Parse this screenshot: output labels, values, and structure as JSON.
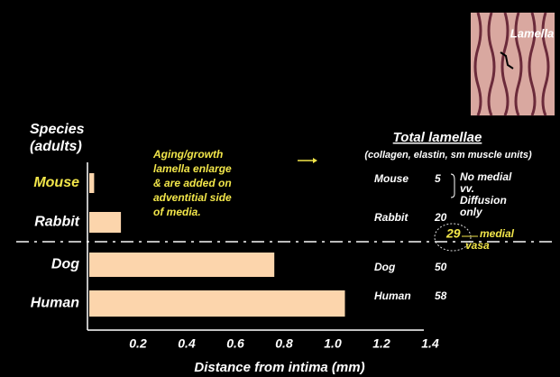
{
  "chart_data": {
    "type": "hbar",
    "ylabel": [
      "Species",
      "(adults)"
    ],
    "xlabel": "Distance from intima (mm)",
    "categories": [
      "Mouse",
      "Rabbit",
      "Dog",
      "Human"
    ],
    "values": [
      0.02,
      0.13,
      0.76,
      1.05
    ],
    "color": "#fcd5ac",
    "label_colors": [
      "#f2e64a",
      "#ffffff",
      "#ffffff",
      "#ffffff"
    ],
    "xlim": [
      0,
      1.5
    ],
    "xticks": [
      0.2,
      0.4,
      0.6,
      {
        "value": 0.8,
        "label": "0.8"
      },
      {
        "value": 1,
        "label": "1.0"
      },
      1.2,
      1.4
    ],
    "annotation": [
      "Aging/growth",
      "lamella enlarge",
      "& are added on",
      "adventitial side",
      "of media."
    ],
    "lamellae_title": "Total lamellae",
    "lamellae_subtitle": "(collagen, elastin, sm muscle units)",
    "lamellae_rows": [
      {
        "species": "Mouse",
        "count": 5
      },
      {
        "species": "Rabbit",
        "count": 20
      },
      {
        "species": "Dog",
        "count": 50
      },
      {
        "species": "Human",
        "count": 58
      }
    ],
    "threshold": {
      "count": 29,
      "label": "medial",
      "label2": "vasa"
    },
    "note": [
      "No medial",
      "vv.",
      "Diffusion",
      "only"
    ],
    "image_label": "Lamella"
  }
}
